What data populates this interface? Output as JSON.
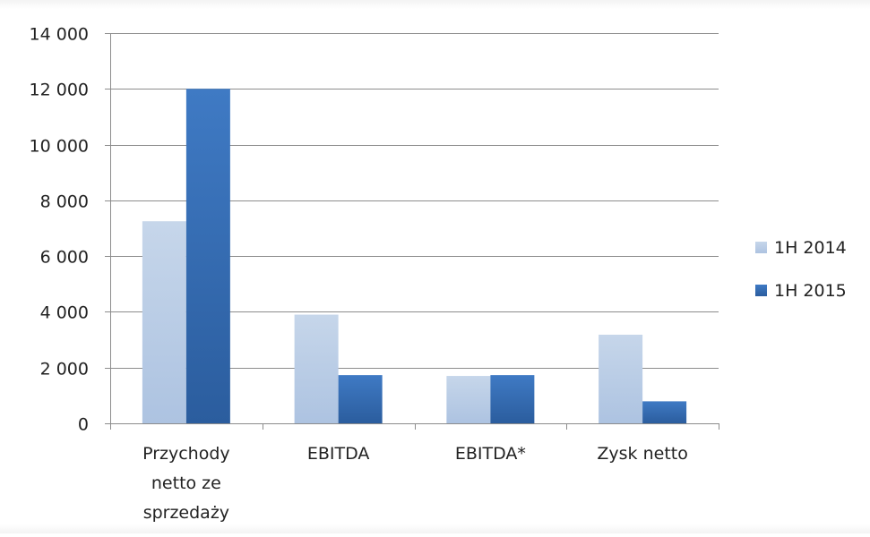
{
  "chart_data": {
    "type": "bar",
    "title": "",
    "xlabel": "",
    "ylabel": "",
    "categories": [
      [
        "Przychody",
        "netto ze",
        "sprzedaży"
      ],
      [
        "EBITDA"
      ],
      [
        "EBITDA*"
      ],
      [
        "Zysk netto"
      ]
    ],
    "series": [
      {
        "name": "1H 2014",
        "values": [
          7250,
          3900,
          1700,
          3180
        ]
      },
      {
        "name": "1H 2015",
        "values": [
          12000,
          1730,
          1730,
          790
        ]
      }
    ],
    "ylim": [
      0,
      14000
    ],
    "yticks": [
      "0",
      "2 000",
      "4 000",
      "6 000",
      "8 000",
      "10 000",
      "12 000",
      "14 000"
    ],
    "grid": true,
    "legend_position": "right",
    "colors": {
      "series_1_light": "#c6d6ea",
      "series_1_dark": "#adc3e1",
      "series_2_light": "#3f7ac4",
      "series_2_dark": "#2b5d9e",
      "grid": "#8c8c8c",
      "axis": "#8c8c8c"
    }
  }
}
